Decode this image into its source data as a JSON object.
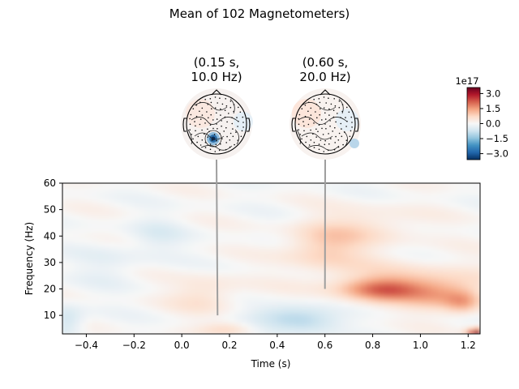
{
  "chart_data": {
    "type": "heatmap",
    "title": "Mean of 102 Magnetometers)",
    "xlabel": "Time (s)",
    "ylabel": "Frequency (Hz)",
    "xlim": [
      -0.5,
      1.25
    ],
    "ylim": [
      3,
      60
    ],
    "x_ticks": [
      -0.4,
      -0.2,
      0.0,
      0.2,
      0.4,
      0.6,
      0.8,
      1.0,
      1.2
    ],
    "x_tick_labels": [
      "−0.4",
      "−0.2",
      "0.0",
      "0.2",
      "0.4",
      "0.6",
      "0.8",
      "1.0",
      "1.2"
    ],
    "y_ticks": [
      10,
      20,
      30,
      40,
      50,
      60
    ],
    "y_tick_labels": [
      "10",
      "20",
      "30",
      "40",
      "50",
      "60"
    ],
    "grid": false,
    "colormap": "RdBu_r",
    "colorbar": {
      "exponent_label": "1e17",
      "vmin": -3.6,
      "vmax": 3.6,
      "ticks": [
        3.0,
        1.5,
        0.0,
        -1.5,
        -3.0
      ],
      "tick_labels": [
        "3.0",
        "1.5",
        "0.0",
        "−1.5",
        "−3.0"
      ]
    },
    "blobs": [
      {
        "t": 0.85,
        "f": 20,
        "amp": 1.6,
        "st": 0.12,
        "sf": 3
      },
      {
        "t": 0.95,
        "f": 22,
        "amp": 0.7,
        "st": 0.25,
        "sf": 6
      },
      {
        "t": 1.1,
        "f": 18,
        "amp": 0.9,
        "st": 0.1,
        "sf": 4
      },
      {
        "t": 1.18,
        "f": 15,
        "amp": 0.9,
        "st": 0.05,
        "sf": 3
      },
      {
        "t": 0.6,
        "f": 36,
        "amp": 0.9,
        "st": 0.12,
        "sf": 6
      },
      {
        "t": 0.8,
        "f": 44,
        "amp": 0.5,
        "st": 0.15,
        "sf": 5
      },
      {
        "t": 0.1,
        "f": 18,
        "amp": 0.6,
        "st": 0.1,
        "sf": 5
      },
      {
        "t": 0.2,
        "f": 5,
        "amp": 0.7,
        "st": 0.08,
        "sf": 2
      },
      {
        "t": 0.45,
        "f": 10,
        "amp": -0.9,
        "st": 0.12,
        "sf": 3
      },
      {
        "t": 0.55,
        "f": 7,
        "amp": -0.6,
        "st": 0.1,
        "sf": 3
      },
      {
        "t": -0.48,
        "f": 8,
        "amp": -0.8,
        "st": 0.05,
        "sf": 4
      },
      {
        "t": -0.1,
        "f": 40,
        "amp": -0.4,
        "st": 0.08,
        "sf": 5
      },
      {
        "t": -0.3,
        "f": 30,
        "amp": -0.3,
        "st": 0.1,
        "sf": 6
      },
      {
        "t": 1.24,
        "f": 3,
        "amp": 3.5,
        "st": 0.03,
        "sf": 1.5
      }
    ],
    "topomaps": [
      {
        "title_line1": "(0.15 s,",
        "title_line2": "10.0 Hz)",
        "time": 0.15,
        "freq": 10.0,
        "focus": [
          0.0,
          -0.28
        ],
        "focus_value": -3.2
      },
      {
        "title_line1": "(0.60 s,",
        "title_line2": "20.0 Hz)",
        "time": 0.6,
        "freq": 20.0,
        "focus": [
          0.62,
          -0.5
        ],
        "focus_value": -1.2
      }
    ]
  }
}
